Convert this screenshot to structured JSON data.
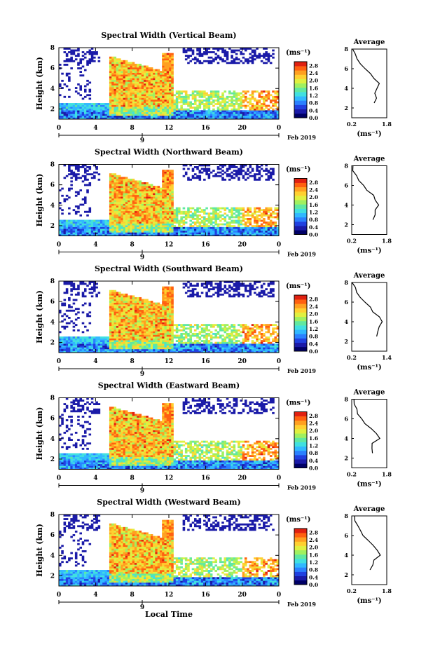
{
  "chart_data": {
    "type": "heatmap",
    "date_label": "Feb 2019",
    "xlabel_bottom": "Local Time",
    "x_ticks": [
      "0",
      "4",
      "8",
      "12",
      "16",
      "20",
      "0"
    ],
    "day_label": "9",
    "ylabel": "Height (km)",
    "y_ticks": [
      "2",
      "4",
      "6",
      "8"
    ],
    "ylim": [
      1,
      8
    ],
    "colorbar": {
      "unit": "(ms⁻¹)",
      "ticks": [
        "0.0",
        "0.4",
        "0.8",
        "1.2",
        "1.6",
        "2.0",
        "2.4",
        "2.8"
      ],
      "range": [
        0.0,
        3.0
      ],
      "colors": [
        "#000066",
        "#1a1aa8",
        "#2040e0",
        "#2a80ff",
        "#30b8ff",
        "#40e0e0",
        "#60e8a0",
        "#a0f060",
        "#e0f040",
        "#ffd030",
        "#ffa020",
        "#ff6010",
        "#e02010"
      ]
    },
    "avg_title": "Average",
    "avg_ylabel_unit": "(ms⁻¹)",
    "panels": [
      {
        "title": "Spectral Width (Vertical Beam)",
        "avg_xticks": [
          "0.2",
          "1.8"
        ],
        "avg_xlim": [
          0.2,
          1.8
        ],
        "avg_profile": [
          [
            2.5,
            1.25
          ],
          [
            3,
            1.3
          ],
          [
            3.5,
            1.2
          ],
          [
            4,
            1.35
          ],
          [
            4.5,
            1.5
          ],
          [
            5,
            1.25
          ],
          [
            5.5,
            1.05
          ],
          [
            6,
            0.85
          ],
          [
            6.5,
            0.6
          ],
          [
            7,
            0.45
          ],
          [
            7.5,
            0.35
          ],
          [
            8,
            0.3
          ]
        ]
      },
      {
        "title": "Spectral Width (Northward Beam)",
        "avg_xticks": [
          "0.2",
          "1.8"
        ],
        "avg_xlim": [
          0.2,
          1.8
        ],
        "avg_profile": [
          [
            2.5,
            1.2
          ],
          [
            3,
            1.3
          ],
          [
            3.5,
            1.25
          ],
          [
            4,
            1.45
          ],
          [
            4.5,
            1.25
          ],
          [
            5,
            1.2
          ],
          [
            5.5,
            0.95
          ],
          [
            6,
            0.7
          ],
          [
            6.5,
            0.5
          ],
          [
            7,
            0.4
          ],
          [
            7.5,
            0.3
          ],
          [
            8,
            0.25
          ]
        ]
      },
      {
        "title": "Spectral Width (Southward Beam)",
        "avg_xticks": [
          "0.2",
          "1.4"
        ],
        "avg_xlim": [
          0.2,
          1.4
        ],
        "avg_profile": [
          [
            2.5,
            1.1
          ],
          [
            3,
            1.15
          ],
          [
            3.5,
            1.2
          ],
          [
            4,
            1.25
          ],
          [
            4.5,
            1.1
          ],
          [
            5,
            0.95
          ],
          [
            5.5,
            0.8
          ],
          [
            6,
            0.6
          ],
          [
            6.5,
            0.45
          ],
          [
            7,
            0.35
          ],
          [
            7.5,
            0.3
          ],
          [
            8,
            0.25
          ]
        ]
      },
      {
        "title": "Spectral Width (Eastward Beam)",
        "avg_xticks": [
          "0.2",
          "1.8"
        ],
        "avg_xlim": [
          0.2,
          1.8
        ],
        "avg_profile": [
          [
            2.5,
            1.15
          ],
          [
            3,
            1.1
          ],
          [
            3.5,
            1.15
          ],
          [
            4,
            1.5
          ],
          [
            4.5,
            1.3
          ],
          [
            5,
            1.05
          ],
          [
            5.5,
            0.85
          ],
          [
            6,
            0.65
          ],
          [
            6.5,
            0.5
          ],
          [
            7,
            0.4
          ],
          [
            7.5,
            0.3
          ],
          [
            8,
            0.25
          ]
        ]
      },
      {
        "title": "Spectral Width (Westward Beam)",
        "avg_xticks": [
          "0.2",
          "1.8"
        ],
        "avg_xlim": [
          0.2,
          1.8
        ],
        "avg_profile": [
          [
            2.5,
            1.05
          ],
          [
            3,
            1.15
          ],
          [
            3.5,
            1.25
          ],
          [
            4,
            1.5
          ],
          [
            4.5,
            1.35
          ],
          [
            5,
            1.2
          ],
          [
            5.5,
            1.0
          ],
          [
            6,
            0.7
          ],
          [
            6.5,
            0.55
          ],
          [
            7,
            0.45
          ],
          [
            7.5,
            0.35
          ],
          [
            8,
            0.3
          ]
        ]
      }
    ]
  }
}
